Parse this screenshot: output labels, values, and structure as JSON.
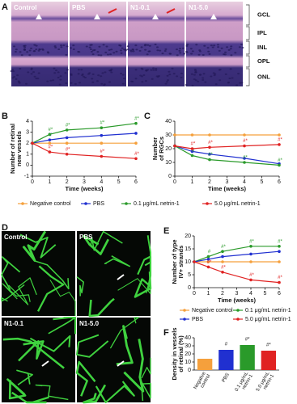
{
  "panels": {
    "A": {
      "label": "A",
      "captions": [
        "Control",
        "PBS",
        "N1-0.1",
        "N1-5.0"
      ],
      "layers": [
        "GCL",
        "IPL",
        "INL",
        "OPL",
        "ONL"
      ]
    },
    "D": {
      "label": "D",
      "captions": [
        "Control",
        "PBS",
        "N1-0.1",
        "N1-5.0"
      ]
    }
  },
  "chart_data": [
    {
      "type": "line",
      "label": "B",
      "ylabel": "Number of retinal new vessels",
      "xlabel": "Time (weeks)",
      "x": [
        0,
        1,
        2,
        4,
        6
      ],
      "xlim": [
        0,
        6
      ],
      "xticks": [
        0,
        1,
        2,
        3,
        4,
        5,
        6
      ],
      "ylim": [
        -1,
        4
      ],
      "yticks": [
        -1,
        0,
        1,
        2,
        3,
        4
      ],
      "legend": "below",
      "series": [
        {
          "name": "Negative control",
          "color": "#f5a03c",
          "values": [
            2,
            2,
            2,
            2,
            2
          ]
        },
        {
          "name": "PBS",
          "color": "#2030d0",
          "values": [
            2,
            2.3,
            2.5,
            2.7,
            2.9
          ],
          "marks": [
            null,
            "#",
            null,
            null,
            null
          ]
        },
        {
          "name": "0.1 μg/mL netrin-1",
          "color": "#2a9a2a",
          "values": [
            2,
            2.8,
            3.2,
            3.4,
            3.8
          ],
          "marks": [
            null,
            "#*",
            "#*",
            "#*",
            "#*"
          ]
        },
        {
          "name": "5.0 μg/mL netrin-1",
          "color": "#e02222",
          "values": [
            2,
            1.2,
            1,
            0.8,
            0.6
          ],
          "marks": [
            null,
            "#*",
            "#*",
            "#*",
            "#*"
          ]
        }
      ]
    },
    {
      "type": "line",
      "label": "C",
      "ylabel": "Number of RGCs",
      "xlabel": "Time (weeks)",
      "x": [
        0,
        1,
        2,
        4,
        6
      ],
      "xlim": [
        0,
        6
      ],
      "xticks": [
        0,
        1,
        2,
        3,
        4,
        5,
        6
      ],
      "ylim": [
        0,
        40
      ],
      "yticks": [
        0,
        10,
        20,
        30,
        40
      ],
      "series": [
        {
          "name": "Negative control",
          "color": "#f5a03c",
          "values": [
            30,
            30,
            30,
            30,
            30
          ]
        },
        {
          "name": "PBS",
          "color": "#2030d0",
          "values": [
            22,
            18,
            16,
            13,
            9
          ]
        },
        {
          "name": "0.1 μg/mL netrin-1",
          "color": "#2a9a2a",
          "values": [
            22,
            15,
            12,
            10,
            8
          ],
          "marks": [
            null,
            "#",
            "#*",
            "#*",
            "#*"
          ]
        },
        {
          "name": "5.0 μg/mL netrin-1",
          "color": "#e02222",
          "values": [
            22,
            20,
            21,
            22,
            23
          ],
          "marks": [
            null,
            "#*",
            "#*",
            "#*",
            "#*"
          ]
        }
      ]
    },
    {
      "type": "line",
      "label": "E",
      "ylabel": "Number of type IV+ strands",
      "xlabel": "Time (weeks)",
      "x": [
        0,
        1,
        2,
        4,
        6
      ],
      "xlim": [
        0,
        6
      ],
      "xticks": [
        0,
        1,
        2,
        3,
        4,
        5,
        6
      ],
      "ylim": [
        0,
        20
      ],
      "yticks": [
        0,
        5,
        10,
        15,
        20
      ],
      "legend": "below",
      "series": [
        {
          "name": "Negative control",
          "color": "#f5a03c",
          "values": [
            10,
            10,
            10,
            10,
            10
          ]
        },
        {
          "name": "0.1 μg/mL netrin-1",
          "color": "#2a9a2a",
          "values": [
            10,
            12,
            14,
            16,
            16
          ],
          "marks": [
            null,
            "#",
            "#*",
            "#*",
            "#*"
          ]
        },
        {
          "name": "PBS",
          "color": "#2030d0",
          "values": [
            10,
            11,
            12,
            13,
            14
          ]
        },
        {
          "name": "5.0 μg/mL netrin-1",
          "color": "#e02222",
          "values": [
            10,
            8,
            6,
            3,
            2
          ],
          "marks": [
            null,
            "#*",
            "#*",
            "#*",
            "#*"
          ]
        }
      ]
    },
    {
      "type": "bar",
      "label": "F",
      "ylabel": "Density in vessels of retinal (%)",
      "categories": [
        "Negative control",
        "PBS",
        "0.1 μg/mL netrin-1",
        "5.0 μg/mL netrin-1"
      ],
      "values": [
        14,
        25,
        31,
        24
      ],
      "colors": [
        "#f5a03c",
        "#2030d0",
        "#2a9a2a",
        "#e02222"
      ],
      "marks": [
        null,
        "#",
        "#*",
        "#*"
      ],
      "ylim": [
        0,
        40
      ],
      "yticks": [
        0,
        10,
        20,
        30,
        40
      ]
    }
  ]
}
